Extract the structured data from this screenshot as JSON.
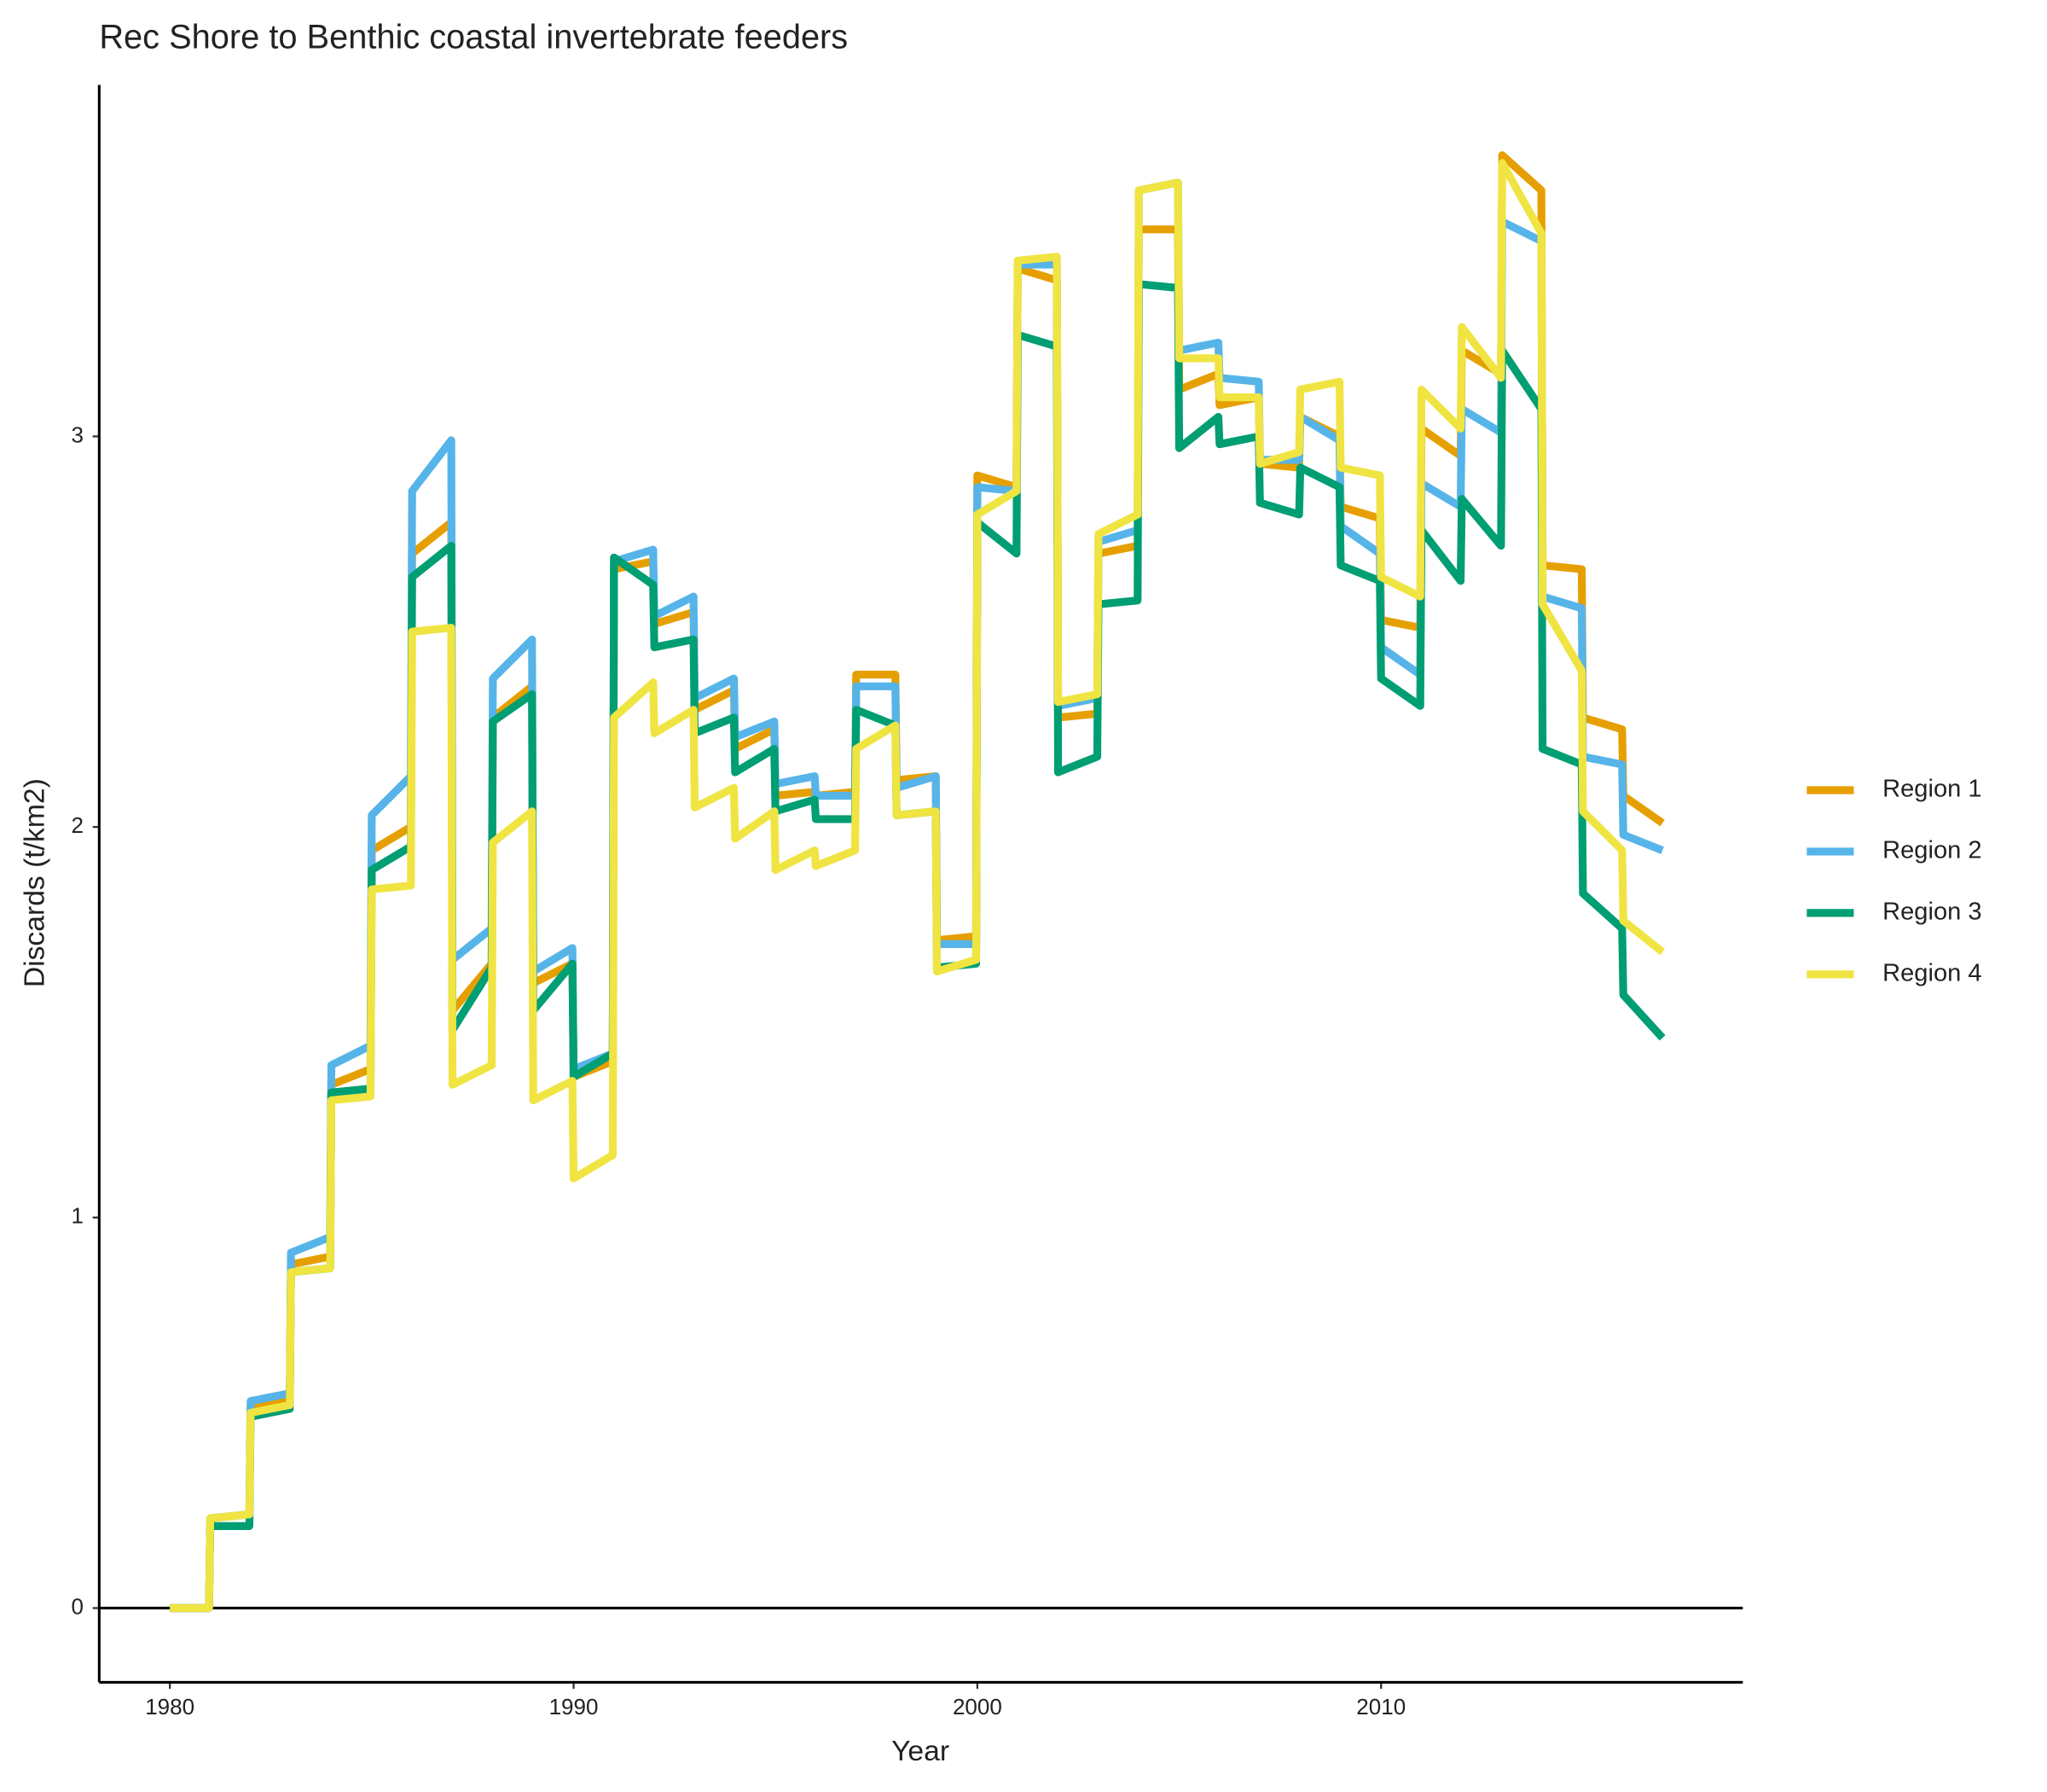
{
  "chart_data": {
    "type": "line",
    "title": "Rec Shore to Benthic coastal invertebrate feeders",
    "x_label": "Year",
    "y_label": "Discards (t/km2)",
    "x": [
      1980,
      1980.97,
      1981,
      1981.97,
      1982,
      1982.97,
      1983,
      1983.97,
      1984,
      1984.97,
      1985,
      1985.97,
      1986,
      1986.97,
      1987,
      1987.97,
      1988,
      1988.97,
      1989,
      1989.97,
      1990,
      1990.97,
      1991,
      1991.97,
      1992,
      1992.97,
      1993,
      1993.97,
      1994,
      1994.97,
      1995,
      1995.97,
      1996,
      1996.97,
      1997,
      1997.97,
      1998,
      1998.97,
      1999,
      1999.97,
      2000,
      2000.97,
      2001,
      2001.97,
      2002,
      2002.97,
      2003,
      2003.97,
      2004,
      2004.97,
      2005,
      2005.97,
      2006,
      2006.97,
      2007,
      2007.97,
      2008,
      2008.97,
      2009,
      2009.97,
      2010,
      2010.97,
      2011,
      2011.97,
      2012,
      2012.97,
      2013,
      2013.97,
      2014,
      2014.97,
      2015,
      2015.97,
      2016,
      2016.97
    ],
    "series": [
      {
        "name": "Region 1",
        "color": "#E69F00",
        "values": [
          0,
          0,
          0.23,
          0.24,
          0.52,
          0.53,
          0.88,
          0.9,
          1.34,
          1.38,
          1.94,
          2.0,
          2.7,
          2.78,
          1.53,
          1.65,
          2.28,
          2.36,
          1.6,
          1.65,
          1.36,
          1.4,
          2.66,
          2.68,
          2.52,
          2.55,
          2.3,
          2.35,
          2.2,
          2.25,
          2.08,
          2.09,
          2.08,
          2.09,
          2.39,
          2.39,
          2.12,
          2.13,
          1.71,
          1.72,
          2.9,
          2.87,
          3.43,
          3.4,
          2.28,
          2.29,
          2.7,
          2.72,
          3.53,
          3.53,
          3.12,
          3.16,
          3.08,
          3.1,
          2.93,
          2.92,
          3.05,
          3.0,
          2.82,
          2.79,
          2.53,
          2.51,
          3.02,
          2.95,
          3.22,
          3.16,
          3.72,
          3.63,
          2.67,
          2.66,
          2.28,
          2.25,
          2.08,
          2.01
        ]
      },
      {
        "name": "Region 2",
        "color": "#56B4E9",
        "values": [
          0,
          0,
          0.23,
          0.24,
          0.53,
          0.55,
          0.91,
          0.95,
          1.39,
          1.44,
          2.03,
          2.13,
          2.86,
          2.99,
          1.66,
          1.74,
          2.38,
          2.48,
          1.63,
          1.69,
          1.38,
          1.42,
          2.68,
          2.71,
          2.54,
          2.59,
          2.33,
          2.38,
          2.23,
          2.27,
          2.11,
          2.13,
          2.08,
          2.08,
          2.36,
          2.36,
          2.1,
          2.13,
          1.7,
          1.7,
          2.87,
          2.86,
          3.44,
          3.44,
          2.31,
          2.33,
          2.73,
          2.76,
          3.63,
          3.65,
          3.22,
          3.24,
          3.15,
          3.14,
          2.94,
          2.94,
          3.05,
          2.99,
          2.77,
          2.7,
          2.46,
          2.39,
          2.88,
          2.82,
          3.07,
          3.01,
          3.55,
          3.5,
          2.59,
          2.56,
          2.18,
          2.16,
          1.98,
          1.94
        ]
      },
      {
        "name": "Region 3",
        "color": "#009E73",
        "values": [
          0,
          0,
          0.21,
          0.21,
          0.49,
          0.51,
          0.86,
          0.87,
          1.32,
          1.33,
          1.89,
          1.95,
          2.64,
          2.72,
          1.48,
          1.64,
          2.27,
          2.34,
          1.53,
          1.65,
          1.36,
          1.42,
          2.69,
          2.62,
          2.46,
          2.48,
          2.24,
          2.28,
          2.14,
          2.2,
          2.04,
          2.07,
          2.02,
          2.02,
          2.3,
          2.26,
          2.03,
          2.04,
          1.64,
          1.65,
          2.78,
          2.7,
          3.26,
          3.23,
          2.14,
          2.18,
          2.57,
          2.58,
          3.39,
          3.38,
          2.97,
          3.05,
          2.98,
          3.0,
          2.83,
          2.8,
          2.92,
          2.87,
          2.67,
          2.63,
          2.38,
          2.31,
          2.76,
          2.63,
          2.84,
          2.72,
          3.22,
          3.07,
          2.2,
          2.16,
          1.83,
          1.74,
          1.57,
          1.46
        ]
      },
      {
        "name": "Region 4",
        "color": "#F0E442",
        "values": [
          0,
          0,
          0.23,
          0.24,
          0.5,
          0.52,
          0.86,
          0.87,
          1.3,
          1.31,
          1.84,
          1.85,
          2.5,
          2.51,
          1.34,
          1.39,
          1.96,
          2.04,
          1.3,
          1.35,
          1.1,
          1.16,
          2.28,
          2.37,
          2.24,
          2.3,
          2.05,
          2.1,
          1.97,
          2.04,
          1.89,
          1.94,
          1.9,
          1.94,
          2.2,
          2.26,
          2.03,
          2.04,
          1.63,
          1.66,
          2.8,
          2.86,
          3.45,
          3.46,
          2.32,
          2.34,
          2.75,
          2.8,
          3.63,
          3.65,
          3.2,
          3.2,
          3.1,
          3.1,
          2.93,
          2.96,
          3.12,
          3.14,
          2.92,
          2.9,
          2.64,
          2.59,
          3.12,
          3.02,
          3.28,
          3.15,
          3.7,
          3.52,
          2.57,
          2.4,
          2.04,
          1.94,
          1.76,
          1.68
        ]
      }
    ],
    "xlim": [
      1978.25,
      2018.96
    ],
    "ylim": [
      -0.19,
      3.9
    ],
    "xticks": [
      1980,
      1990,
      2000,
      2010
    ],
    "yticks": [
      0,
      1,
      2,
      3
    ],
    "hline": 0,
    "legend": "right"
  }
}
